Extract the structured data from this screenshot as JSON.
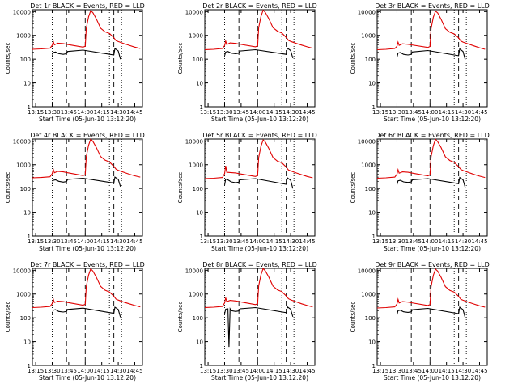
{
  "figure": {
    "xlabel": "Start Time (05-Jun-10 13:12:20)",
    "ylabel": "Counts/sec",
    "x_ticks": [
      "13:15",
      "13:30",
      "13:45",
      "14:00",
      "14:15",
      "14:30",
      "14:45"
    ],
    "y_ticks": [
      "1",
      "10",
      "100",
      "1000",
      "10000"
    ],
    "colors": {
      "events": "#000000",
      "lld": "#e00000",
      "axes": "#000000"
    }
  },
  "chart_data": [
    {
      "type": "line",
      "title": "Det 1r BLACK = Events, RED = LLD",
      "y_scale": "log",
      "ylim": [
        1,
        12000
      ],
      "xlim": [
        "13:12",
        "14:52"
      ],
      "vlines_dotted": [
        "13:30",
        "14:22",
        "14:33"
      ],
      "vlines_dashed": [
        "13:43",
        "14:00",
        "14:26"
      ],
      "series": [
        {
          "name": "LLD",
          "x": [
            "13:12",
            "13:20",
            "13:28",
            "13:30",
            "13:31",
            "13:32",
            "13:35",
            "13:40",
            "13:43",
            "13:58",
            "14:00",
            "14:01",
            "14:03",
            "14:05",
            "14:07",
            "14:10",
            "14:14",
            "14:18",
            "14:22",
            "14:26",
            "14:28",
            "14:30",
            "14:35",
            "14:40",
            "14:45",
            "14:50"
          ],
          "values": [
            260,
            270,
            290,
            380,
            560,
            400,
            470,
            450,
            420,
            320,
            350,
            2000,
            6000,
            11000,
            9000,
            5000,
            2000,
            1400,
            1200,
            800,
            600,
            550,
            450,
            380,
            320,
            280
          ]
        },
        {
          "name": "Events",
          "x": [
            "13:30",
            "13:31",
            "13:33",
            "13:36",
            "13:40",
            "13:43",
            "13:44",
            "13:58",
            "14:26",
            "14:27",
            "14:30",
            "14:32"
          ],
          "values": [
            130,
            190,
            200,
            170,
            160,
            170,
            210,
            240,
            150,
            280,
            220,
            100
          ]
        }
      ]
    },
    {
      "type": "line",
      "title": "Det 2r BLACK = Events, RED = LLD",
      "y_scale": "log",
      "ylim": [
        1,
        12000
      ],
      "xlim": [
        "13:12",
        "14:52"
      ],
      "vlines_dotted": [
        "13:30",
        "14:22",
        "14:33"
      ],
      "vlines_dashed": [
        "13:43",
        "14:00",
        "14:26"
      ],
      "series": [
        {
          "name": "LLD",
          "x": [
            "13:12",
            "13:20",
            "13:28",
            "13:30",
            "13:31",
            "13:32",
            "13:35",
            "13:40",
            "13:43",
            "13:58",
            "14:00",
            "14:01",
            "14:03",
            "14:05",
            "14:07",
            "14:10",
            "14:14",
            "14:18",
            "14:22",
            "14:26",
            "14:28",
            "14:30",
            "14:35",
            "14:40",
            "14:45",
            "14:50"
          ],
          "values": [
            250,
            260,
            280,
            370,
            580,
            410,
            480,
            460,
            430,
            330,
            360,
            2100,
            6200,
            11500,
            9200,
            5200,
            2100,
            1500,
            1250,
            820,
            620,
            560,
            460,
            390,
            330,
            290
          ]
        },
        {
          "name": "Events",
          "x": [
            "13:30",
            "13:31",
            "13:33",
            "13:36",
            "13:40",
            "13:43",
            "13:44",
            "13:58",
            "14:26",
            "14:27",
            "14:30",
            "14:32"
          ],
          "values": [
            140,
            200,
            210,
            180,
            170,
            180,
            220,
            250,
            160,
            290,
            230,
            110
          ]
        }
      ]
    },
    {
      "type": "line",
      "title": "Det 3r BLACK = Events, RED = LLD",
      "y_scale": "log",
      "ylim": [
        1,
        12000
      ],
      "xlim": [
        "13:12",
        "14:52"
      ],
      "vlines_dotted": [
        "13:30",
        "14:22",
        "14:33"
      ],
      "vlines_dashed": [
        "13:43",
        "14:00",
        "14:26"
      ],
      "series": [
        {
          "name": "LLD",
          "x": [
            "13:12",
            "13:20",
            "13:28",
            "13:30",
            "13:31",
            "13:32",
            "13:35",
            "13:40",
            "13:43",
            "13:58",
            "14:00",
            "14:01",
            "14:03",
            "14:05",
            "14:07",
            "14:10",
            "14:14",
            "14:18",
            "14:22",
            "14:26",
            "14:28",
            "14:30",
            "14:35",
            "14:40",
            "14:45",
            "14:50"
          ],
          "values": [
            250,
            260,
            280,
            350,
            520,
            380,
            440,
            420,
            400,
            310,
            340,
            1900,
            5800,
            10500,
            8800,
            4800,
            1900,
            1350,
            1150,
            780,
            580,
            520,
            430,
            360,
            300,
            260
          ]
        },
        {
          "name": "Events",
          "x": [
            "13:30",
            "13:31",
            "13:33",
            "13:36",
            "13:40",
            "13:43",
            "13:44",
            "13:58",
            "14:26",
            "14:27",
            "14:30",
            "14:32"
          ],
          "values": [
            120,
            180,
            190,
            160,
            150,
            160,
            200,
            230,
            140,
            270,
            210,
            95
          ]
        }
      ]
    },
    {
      "type": "line",
      "title": "Det 4r BLACK = Events, RED = LLD",
      "y_scale": "log",
      "ylim": [
        1,
        12000
      ],
      "xlim": [
        "13:12",
        "14:52"
      ],
      "vlines_dotted": [
        "13:30",
        "14:22",
        "14:33"
      ],
      "vlines_dashed": [
        "13:43",
        "14:00",
        "14:26"
      ],
      "series": [
        {
          "name": "LLD",
          "x": [
            "13:12",
            "13:20",
            "13:28",
            "13:30",
            "13:31",
            "13:32",
            "13:35",
            "13:40",
            "13:43",
            "13:58",
            "14:00",
            "14:01",
            "14:03",
            "14:05",
            "14:07",
            "14:10",
            "14:14",
            "14:18",
            "14:22",
            "14:26",
            "14:28",
            "14:30",
            "14:35",
            "14:40",
            "14:45",
            "14:50"
          ],
          "values": [
            280,
            290,
            310,
            420,
            650,
            460,
            530,
            500,
            470,
            350,
            380,
            2200,
            6500,
            12000,
            9500,
            5400,
            2200,
            1550,
            1300,
            850,
            650,
            580,
            480,
            400,
            340,
            300
          ]
        },
        {
          "name": "Events",
          "x": [
            "13:30",
            "13:31",
            "13:33",
            "13:36",
            "13:40",
            "13:43",
            "13:44",
            "13:58",
            "14:26",
            "14:27",
            "14:30",
            "14:32"
          ],
          "values": [
            150,
            220,
            230,
            200,
            185,
            195,
            240,
            270,
            170,
            300,
            240,
            120
          ]
        }
      ]
    },
    {
      "type": "line",
      "title": "Det 5r BLACK = Events, RED = LLD",
      "y_scale": "log",
      "ylim": [
        1,
        12000
      ],
      "xlim": [
        "13:12",
        "14:52"
      ],
      "vlines_dotted": [
        "13:30",
        "14:22",
        "14:33"
      ],
      "vlines_dashed": [
        "13:43",
        "14:00",
        "14:26"
      ],
      "series": [
        {
          "name": "LLD",
          "x": [
            "13:12",
            "13:20",
            "13:28",
            "13:30",
            "13:31",
            "13:32",
            "13:35",
            "13:40",
            "13:43",
            "13:58",
            "14:00",
            "14:01",
            "14:03",
            "14:05",
            "14:07",
            "14:10",
            "14:14",
            "14:18",
            "14:22",
            "14:26",
            "14:28",
            "14:30",
            "14:35",
            "14:40",
            "14:45",
            "14:50"
          ],
          "values": [
            260,
            270,
            290,
            420,
            900,
            480,
            470,
            450,
            420,
            320,
            350,
            2000,
            6000,
            11000,
            9000,
            5000,
            2000,
            1400,
            1200,
            800,
            600,
            550,
            450,
            380,
            320,
            280
          ]
        },
        {
          "name": "Events",
          "x": [
            "13:30",
            "13:31",
            "13:33",
            "13:36",
            "13:40",
            "13:43",
            "13:44",
            "13:58",
            "14:26",
            "14:27",
            "14:30",
            "14:32"
          ],
          "values": [
            140,
            250,
            230,
            190,
            175,
            185,
            230,
            260,
            150,
            280,
            220,
            100
          ]
        }
      ]
    },
    {
      "type": "line",
      "title": "Det 6r BLACK = Events, RED = LLD",
      "y_scale": "log",
      "ylim": [
        1,
        12000
      ],
      "xlim": [
        "13:12",
        "14:52"
      ],
      "vlines_dotted": [
        "13:30",
        "14:22",
        "14:33"
      ],
      "vlines_dashed": [
        "13:43",
        "14:00",
        "14:26"
      ],
      "series": [
        {
          "name": "LLD",
          "x": [
            "13:12",
            "13:20",
            "13:28",
            "13:30",
            "13:31",
            "13:32",
            "13:35",
            "13:40",
            "13:43",
            "13:58",
            "14:00",
            "14:01",
            "14:03",
            "14:05",
            "14:07",
            "14:10",
            "14:14",
            "14:18",
            "14:22",
            "14:26",
            "14:28",
            "14:30",
            "14:35",
            "14:40",
            "14:45",
            "14:50"
          ],
          "values": [
            270,
            280,
            300,
            400,
            620,
            440,
            500,
            480,
            450,
            340,
            370,
            2150,
            6300,
            11800,
            9300,
            5300,
            2150,
            1500,
            1250,
            830,
            630,
            570,
            470,
            390,
            330,
            290
          ]
        },
        {
          "name": "Events",
          "x": [
            "13:30",
            "13:31",
            "13:33",
            "13:36",
            "13:40",
            "13:43",
            "13:44",
            "13:58",
            "14:26",
            "14:27",
            "14:30",
            "14:32"
          ],
          "values": [
            145,
            210,
            220,
            190,
            180,
            190,
            230,
            260,
            160,
            290,
            230,
            110
          ]
        }
      ]
    },
    {
      "type": "line",
      "title": "Det 7r BLACK = Events, RED = LLD",
      "y_scale": "log",
      "ylim": [
        1,
        12000
      ],
      "xlim": [
        "13:12",
        "14:52"
      ],
      "vlines_dotted": [
        "13:30",
        "14:22",
        "14:33"
      ],
      "vlines_dashed": [
        "13:43",
        "14:00",
        "14:26"
      ],
      "series": [
        {
          "name": "LLD",
          "x": [
            "13:12",
            "13:20",
            "13:28",
            "13:30",
            "13:31",
            "13:32",
            "13:35",
            "13:40",
            "13:43",
            "13:58",
            "14:00",
            "14:01",
            "14:03",
            "14:05",
            "14:07",
            "14:10",
            "14:14",
            "14:18",
            "14:22",
            "14:26",
            "14:28",
            "14:30",
            "14:35",
            "14:40",
            "14:45",
            "14:50"
          ],
          "values": [
            270,
            280,
            300,
            400,
            620,
            440,
            500,
            480,
            450,
            340,
            370,
            2100,
            6200,
            11500,
            9200,
            5200,
            2100,
            1450,
            1220,
            810,
            610,
            560,
            460,
            390,
            330,
            290
          ]
        },
        {
          "name": "Events",
          "x": [
            "13:30",
            "13:31",
            "13:33",
            "13:36",
            "13:40",
            "13:43",
            "13:44",
            "13:58",
            "14:26",
            "14:27",
            "14:30",
            "14:32"
          ],
          "values": [
            140,
            210,
            220,
            185,
            175,
            185,
            225,
            255,
            155,
            280,
            225,
            105
          ]
        }
      ]
    },
    {
      "type": "line",
      "title": "Det 8r BLACK = Events, RED = LLD",
      "y_scale": "log",
      "ylim": [
        1,
        12000
      ],
      "xlim": [
        "13:12",
        "14:52"
      ],
      "vlines_dotted": [
        "13:30",
        "14:22",
        "14:33"
      ],
      "vlines_dashed": [
        "13:43",
        "14:00",
        "14:26"
      ],
      "series": [
        {
          "name": "LLD",
          "x": [
            "13:12",
            "13:20",
            "13:28",
            "13:30",
            "13:31",
            "13:32",
            "13:35",
            "13:40",
            "13:43",
            "13:58",
            "14:00",
            "14:01",
            "14:03",
            "14:05",
            "14:07",
            "14:10",
            "14:14",
            "14:18",
            "14:22",
            "14:26",
            "14:28",
            "14:30",
            "14:35",
            "14:40",
            "14:45",
            "14:50"
          ],
          "values": [
            270,
            280,
            300,
            420,
            700,
            480,
            540,
            510,
            480,
            360,
            390,
            2200,
            6400,
            11800,
            9400,
            5300,
            2150,
            1500,
            1260,
            830,
            630,
            570,
            470,
            390,
            330,
            290
          ]
        },
        {
          "name": "Events",
          "x": [
            "13:30",
            "13:31",
            "13:33",
            "13:34",
            "13:35",
            "13:36",
            "13:40",
            "13:43",
            "13:44",
            "13:58",
            "14:26",
            "14:27",
            "14:30",
            "14:32"
          ],
          "values": [
            150,
            230,
            240,
            6,
            240,
            200,
            185,
            195,
            240,
            270,
            165,
            290,
            230,
            110
          ]
        }
      ]
    },
    {
      "type": "line",
      "title": "Det 9r BLACK = Events, RED = LLD",
      "y_scale": "log",
      "ylim": [
        1,
        12000
      ],
      "xlim": [
        "13:12",
        "14:52"
      ],
      "vlines_dotted": [
        "13:30",
        "14:22",
        "14:33"
      ],
      "vlines_dashed": [
        "13:43",
        "14:00",
        "14:26"
      ],
      "series": [
        {
          "name": "LLD",
          "x": [
            "13:12",
            "13:20",
            "13:28",
            "13:30",
            "13:31",
            "13:32",
            "13:35",
            "13:40",
            "13:43",
            "13:58",
            "14:00",
            "14:01",
            "14:03",
            "14:05",
            "14:07",
            "14:10",
            "14:14",
            "14:18",
            "14:22",
            "14:26",
            "14:28",
            "14:30",
            "14:35",
            "14:40",
            "14:45",
            "14:50"
          ],
          "values": [
            260,
            270,
            290,
            380,
            600,
            420,
            480,
            460,
            430,
            330,
            360,
            2050,
            6100,
            11200,
            9100,
            5100,
            2050,
            1420,
            1210,
            800,
            600,
            550,
            450,
            380,
            320,
            280
          ]
        },
        {
          "name": "Events",
          "x": [
            "13:30",
            "13:31",
            "13:33",
            "13:36",
            "13:40",
            "13:43",
            "13:44",
            "13:58",
            "14:26",
            "14:27",
            "14:30",
            "14:32"
          ],
          "values": [
            135,
            200,
            210,
            180,
            170,
            180,
            220,
            250,
            150,
            280,
            220,
            100
          ]
        }
      ]
    }
  ]
}
